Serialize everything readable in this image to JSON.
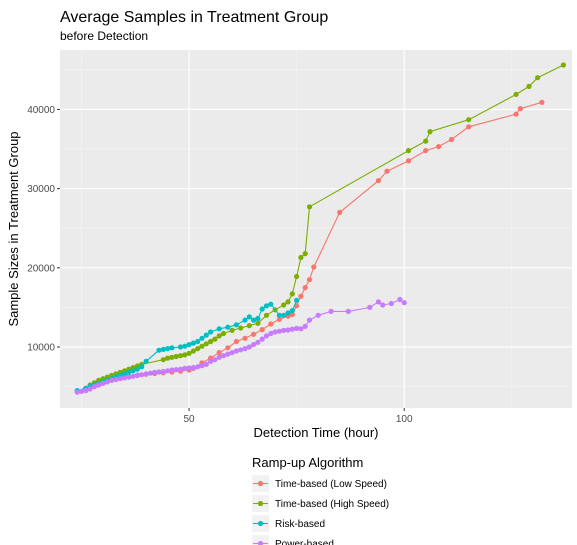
{
  "chart_data": {
    "type": "line",
    "title": "Average Samples in Treatment Group",
    "subtitle": "before Detection",
    "xlabel": "Detection Time (hour)",
    "ylabel": "Sample Sizes in Treatment Group",
    "xlim": [
      20,
      139
    ],
    "ylim": [
      2300,
      47500
    ],
    "x_ticks": [
      50,
      100
    ],
    "x_tick_labels": [
      "50",
      "100"
    ],
    "y_ticks": [
      10000,
      20000,
      30000,
      40000
    ],
    "y_tick_labels": [
      "10000",
      "20000",
      "30000",
      "40000"
    ],
    "grid": true,
    "legend_position": "bottom",
    "legend_title": "Ramp-up Algorithm",
    "series": [
      {
        "name": "Time-based (Low Speed)",
        "color": "#F8766D",
        "points": [
          [
            26,
            4700
          ],
          [
            28,
            5100
          ],
          [
            30,
            5500
          ],
          [
            32,
            5800
          ],
          [
            34,
            6100
          ],
          [
            36,
            6300
          ],
          [
            38,
            6450
          ],
          [
            40,
            6550
          ],
          [
            42,
            6650
          ],
          [
            44,
            6750
          ],
          [
            46,
            6850
          ],
          [
            48,
            6950
          ],
          [
            50,
            7100
          ],
          [
            51,
            7300
          ],
          [
            53,
            8000
          ],
          [
            55,
            8600
          ],
          [
            57,
            9300
          ],
          [
            59,
            9900
          ],
          [
            61,
            10700
          ],
          [
            63,
            11100
          ],
          [
            65,
            11600
          ],
          [
            67,
            12200
          ],
          [
            69,
            12900
          ],
          [
            71,
            13500
          ],
          [
            73,
            13900
          ],
          [
            74,
            14100
          ],
          [
            75,
            15200
          ],
          [
            76,
            16400
          ],
          [
            77,
            17500
          ],
          [
            78,
            18500
          ],
          [
            79,
            20100
          ],
          [
            85,
            27000
          ],
          [
            94,
            31000
          ],
          [
            96,
            32200
          ],
          [
            101,
            33500
          ],
          [
            105,
            34800
          ],
          [
            108,
            35300
          ],
          [
            111,
            36200
          ],
          [
            115,
            37800
          ],
          [
            126,
            39400
          ],
          [
            127,
            40100
          ],
          [
            132,
            40900
          ]
        ]
      },
      {
        "name": "Time-based (High Speed)",
        "color": "#7CAE00",
        "points": [
          [
            27,
            5200
          ],
          [
            28,
            5500
          ],
          [
            29,
            5800
          ],
          [
            30,
            6000
          ],
          [
            31,
            6200
          ],
          [
            32,
            6400
          ],
          [
            33,
            6600
          ],
          [
            34,
            6800
          ],
          [
            35,
            7000
          ],
          [
            36,
            7200
          ],
          [
            37,
            7400
          ],
          [
            38,
            7600
          ],
          [
            39,
            7800
          ],
          [
            44,
            8400
          ],
          [
            45,
            8600
          ],
          [
            46,
            8700
          ],
          [
            47,
            8800
          ],
          [
            48,
            8900
          ],
          [
            49,
            9000
          ],
          [
            50,
            9200
          ],
          [
            51,
            9500
          ],
          [
            52,
            9800
          ],
          [
            53,
            10100
          ],
          [
            54,
            10400
          ],
          [
            55,
            10700
          ],
          [
            56,
            11000
          ],
          [
            57,
            11400
          ],
          [
            58,
            11700
          ],
          [
            60,
            12100
          ],
          [
            62,
            12400
          ],
          [
            64,
            12700
          ],
          [
            66,
            13000
          ],
          [
            68,
            14000
          ],
          [
            70,
            14700
          ],
          [
            72,
            15300
          ],
          [
            73,
            15700
          ],
          [
            74,
            16700
          ],
          [
            75,
            18900
          ],
          [
            76,
            21300
          ],
          [
            77,
            21800
          ],
          [
            78,
            27700
          ],
          [
            101,
            34800
          ],
          [
            105,
            36000
          ],
          [
            106,
            37200
          ],
          [
            115,
            38700
          ],
          [
            126,
            41900
          ],
          [
            129,
            42900
          ],
          [
            131,
            44000
          ],
          [
            137,
            45600
          ]
        ]
      },
      {
        "name": "Risk-based",
        "color": "#00BFC4",
        "points": [
          [
            24,
            4500
          ],
          [
            26,
            4800
          ],
          [
            27,
            5000
          ],
          [
            28,
            5200
          ],
          [
            29,
            5400
          ],
          [
            30,
            5600
          ],
          [
            31,
            5800
          ],
          [
            32,
            6000
          ],
          [
            33,
            6200
          ],
          [
            34,
            6400
          ],
          [
            35,
            6600
          ],
          [
            36,
            6800
          ],
          [
            37,
            7000
          ],
          [
            38,
            7200
          ],
          [
            39,
            7500
          ],
          [
            40,
            8200
          ],
          [
            43,
            9600
          ],
          [
            44,
            9700
          ],
          [
            45,
            9800
          ],
          [
            46,
            9900
          ],
          [
            48,
            10000
          ],
          [
            49,
            10100
          ],
          [
            50,
            10300
          ],
          [
            51,
            10500
          ],
          [
            52,
            10700
          ],
          [
            53,
            11100
          ],
          [
            54,
            11500
          ],
          [
            55,
            11900
          ],
          [
            57,
            12300
          ],
          [
            59,
            12500
          ],
          [
            61,
            12800
          ],
          [
            63,
            13400
          ],
          [
            64,
            13800
          ],
          [
            65,
            13400
          ],
          [
            66,
            13600
          ],
          [
            67,
            14800
          ],
          [
            68,
            15200
          ],
          [
            69,
            15400
          ],
          [
            71,
            14000
          ],
          [
            72,
            14000
          ],
          [
            73,
            14300
          ],
          [
            74,
            14600
          ],
          [
            75,
            15900
          ]
        ]
      },
      {
        "name": "Power-based",
        "color": "#C77CFF",
        "points": [
          [
            24,
            4300
          ],
          [
            25,
            4400
          ],
          [
            26,
            4500
          ],
          [
            27,
            4700
          ],
          [
            28,
            5000
          ],
          [
            29,
            5200
          ],
          [
            30,
            5400
          ],
          [
            31,
            5600
          ],
          [
            32,
            5800
          ],
          [
            33,
            5900
          ],
          [
            34,
            6000
          ],
          [
            35,
            6100
          ],
          [
            36,
            6200
          ],
          [
            37,
            6300
          ],
          [
            38,
            6400
          ],
          [
            39,
            6500
          ],
          [
            40,
            6600
          ],
          [
            41,
            6700
          ],
          [
            42,
            6800
          ],
          [
            43,
            6850
          ],
          [
            44,
            6900
          ],
          [
            45,
            7000
          ],
          [
            46,
            7100
          ],
          [
            47,
            7150
          ],
          [
            48,
            7200
          ],
          [
            49,
            7300
          ],
          [
            50,
            7350
          ],
          [
            51,
            7400
          ],
          [
            52,
            7500
          ],
          [
            53,
            7650
          ],
          [
            54,
            7800
          ],
          [
            55,
            8200
          ],
          [
            56,
            8400
          ],
          [
            57,
            8700
          ],
          [
            58,
            8900
          ],
          [
            59,
            9100
          ],
          [
            60,
            9300
          ],
          [
            61,
            9500
          ],
          [
            62,
            9650
          ],
          [
            63,
            9800
          ],
          [
            64,
            10000
          ],
          [
            65,
            10300
          ],
          [
            66,
            10600
          ],
          [
            67,
            11000
          ],
          [
            68,
            11400
          ],
          [
            69,
            11700
          ],
          [
            70,
            11900
          ],
          [
            71,
            12000
          ],
          [
            72,
            12100
          ],
          [
            73,
            12150
          ],
          [
            74,
            12250
          ],
          [
            75,
            12350
          ],
          [
            76,
            12300
          ],
          [
            77,
            12600
          ],
          [
            78,
            13400
          ],
          [
            80,
            14000
          ],
          [
            83,
            14500
          ],
          [
            87,
            14500
          ],
          [
            92,
            15000
          ],
          [
            94,
            15700
          ],
          [
            95,
            15300
          ],
          [
            97,
            15500
          ],
          [
            99,
            16000
          ],
          [
            100,
            15600
          ]
        ]
      }
    ]
  }
}
